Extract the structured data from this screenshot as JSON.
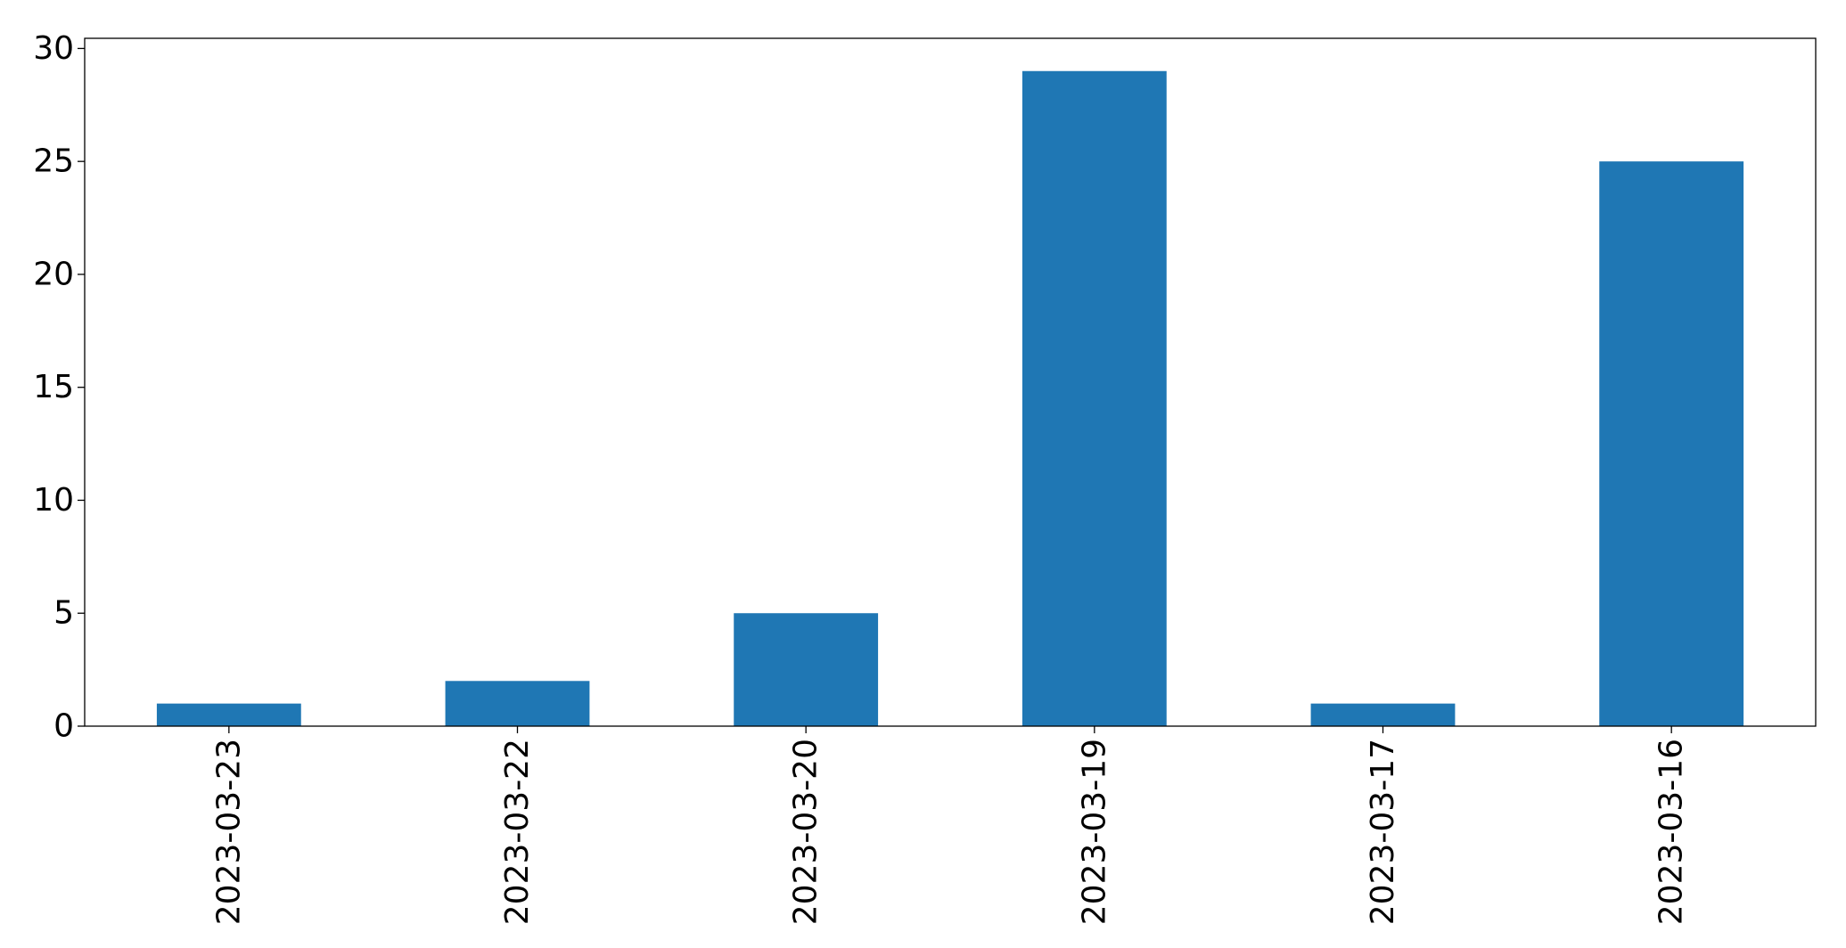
{
  "chart_data": {
    "type": "bar",
    "title": "",
    "xlabel": "",
    "ylabel": "",
    "categories": [
      "2023-03-23",
      "2023-03-22",
      "2023-03-20",
      "2023-03-19",
      "2023-03-17",
      "2023-03-16"
    ],
    "values": [
      1,
      2,
      5,
      29,
      1,
      25
    ],
    "ylim": [
      0,
      30.45
    ],
    "yticks": [
      0,
      5,
      10,
      15,
      20,
      25,
      30
    ],
    "ytick_labels": [
      "0",
      "5",
      "10",
      "15",
      "20",
      "25",
      "30"
    ],
    "grid": false,
    "legend": "none",
    "colors": {
      "bar": "#1f77b4",
      "axis": "#000000",
      "background": "#ffffff"
    }
  }
}
